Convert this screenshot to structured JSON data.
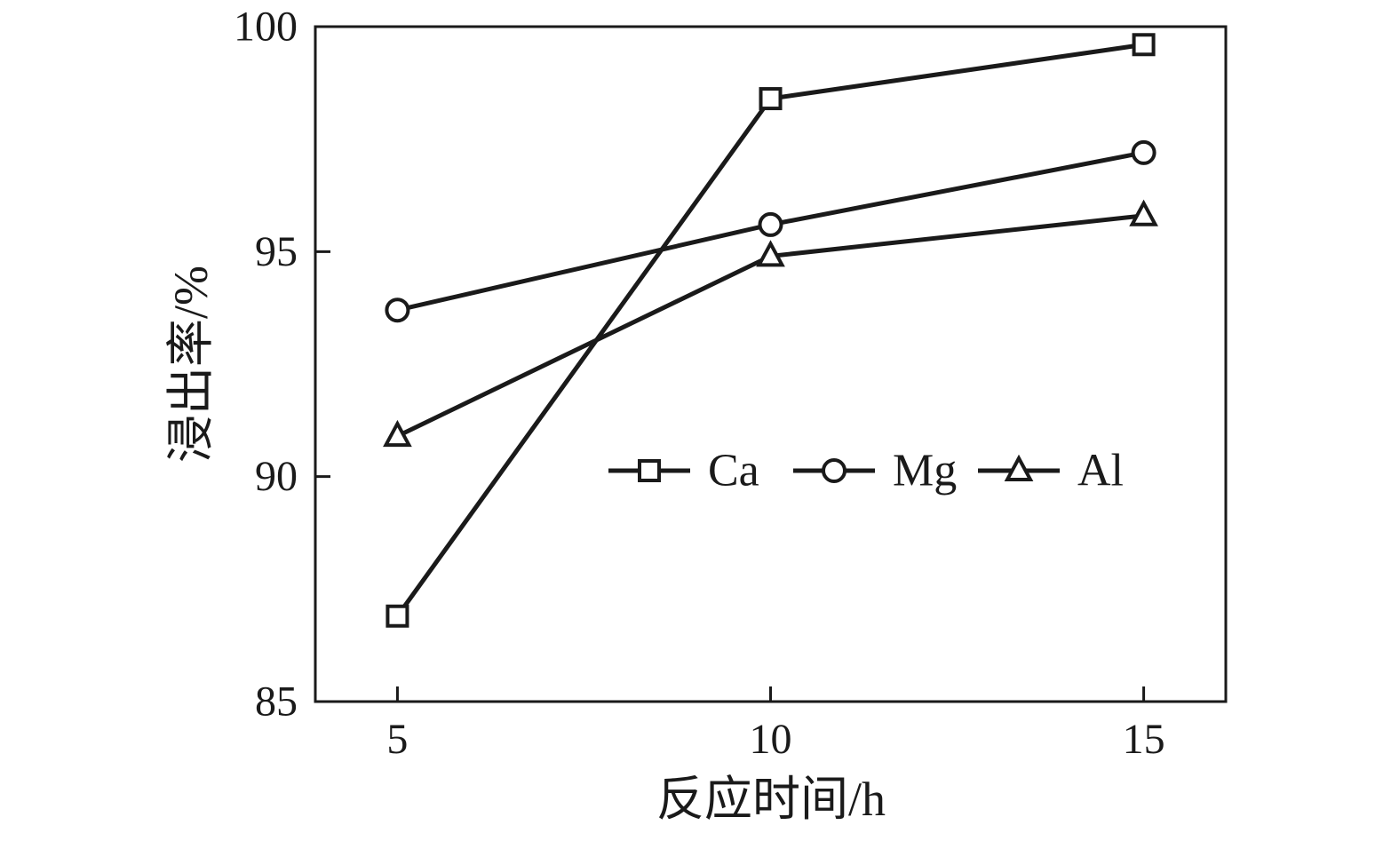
{
  "chart_data": {
    "type": "line",
    "x": [
      5,
      10,
      15
    ],
    "series": [
      {
        "name": "Ca",
        "marker": "square",
        "values": [
          86.9,
          98.4,
          99.6
        ]
      },
      {
        "name": "Mg",
        "marker": "circle",
        "values": [
          93.7,
          95.6,
          97.2
        ]
      },
      {
        "name": "Al",
        "marker": "triangle",
        "values": [
          90.9,
          94.9,
          95.8
        ]
      }
    ],
    "title": "",
    "xlabel": "反应时间/h",
    "ylabel": "浸出率/%",
    "xticks": [
      5,
      10,
      15
    ],
    "yticks": [
      85,
      90,
      95,
      100
    ],
    "xlim": [
      3.9,
      16.1
    ],
    "ylim": [
      85,
      100
    ],
    "grid": false,
    "legend_position": "inside-center",
    "line_color": "#1a1a1a",
    "marker_fill": "#ffffff"
  }
}
